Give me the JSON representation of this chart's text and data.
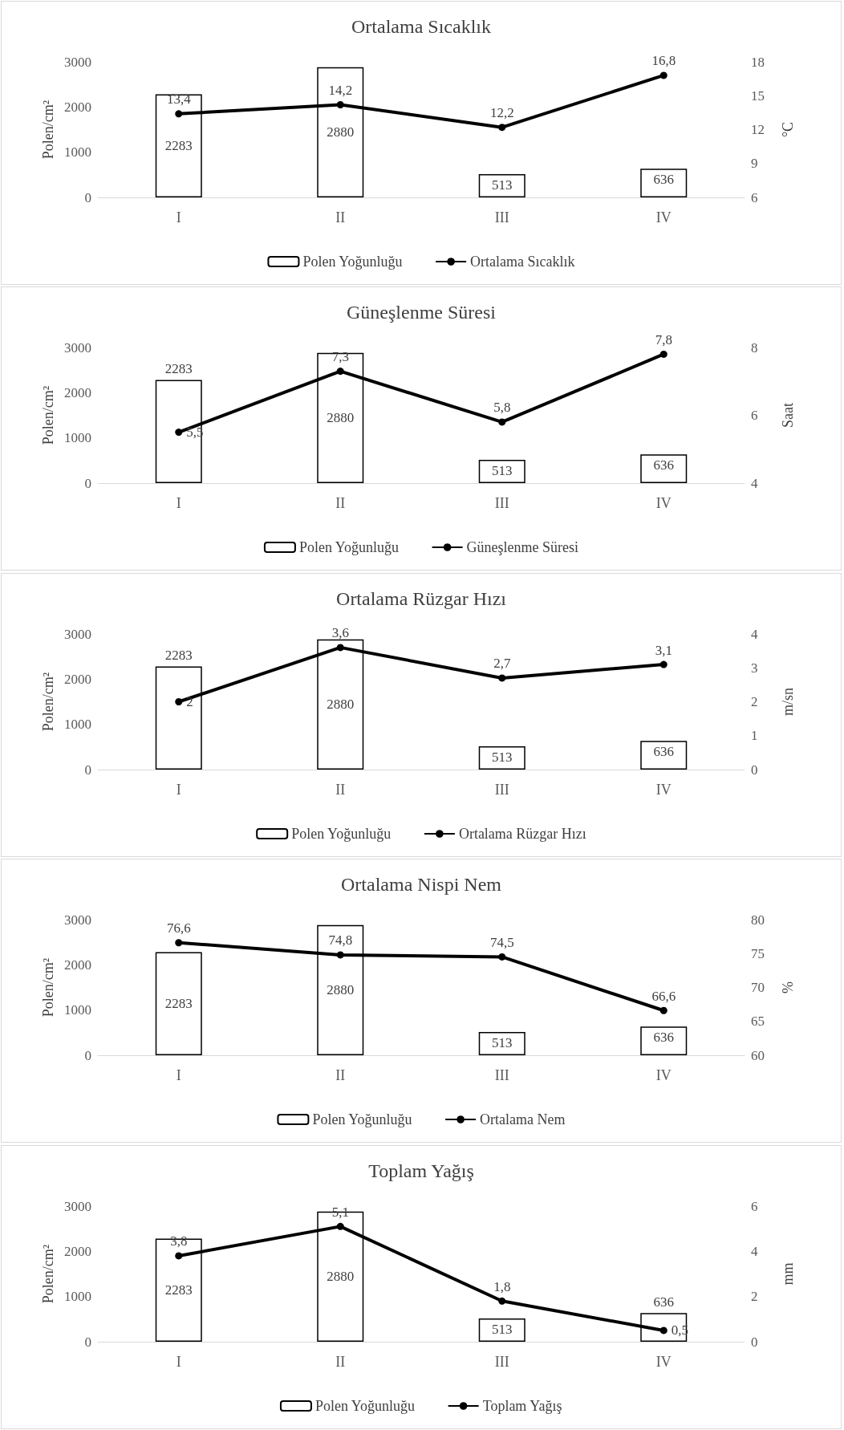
{
  "chart_data": [
    {
      "type": "bar",
      "title": "Ortalama Sıcaklık",
      "ylabel": "Polen/cm²",
      "y2label": "°C",
      "categories": [
        "I",
        "II",
        "III",
        "IV"
      ],
      "ylim": [
        0,
        3000
      ],
      "yticks": [
        0,
        1000,
        2000,
        3000
      ],
      "y2lim": [
        6,
        18
      ],
      "y2ticks": [
        6,
        9,
        12,
        15,
        18
      ],
      "legend": "bottom",
      "grid": false,
      "marker": "circle",
      "series": [
        {
          "name": "Polen Yoğunluğu",
          "color": "#ffffff",
          "values": [
            2283,
            2880,
            513,
            636
          ],
          "value_labels": [
            "2283",
            "2880",
            "513",
            "636"
          ]
        },
        {
          "name": "Ortalama Sıcaklık",
          "type": "line",
          "axis": "y2",
          "color": "#000000",
          "values": [
            13.4,
            14.2,
            12.2,
            16.8
          ],
          "value_labels": [
            "13,4",
            "14,2",
            "12,2",
            "16,8"
          ]
        }
      ]
    },
    {
      "type": "bar",
      "title": "Güneşlenme Süresi",
      "ylabel": "Polen/cm²",
      "y2label": "Saat",
      "categories": [
        "I",
        "II",
        "III",
        "IV"
      ],
      "ylim": [
        0,
        3000
      ],
      "yticks": [
        0,
        1000,
        2000,
        3000
      ],
      "y2lim": [
        4,
        8
      ],
      "y2ticks": [
        4,
        6,
        8
      ],
      "legend": "bottom",
      "grid": false,
      "marker": "circle",
      "series": [
        {
          "name": "Polen Yoğunluğu",
          "color": "#ffffff",
          "values": [
            2283,
            2880,
            513,
            636
          ],
          "value_labels": [
            "2283",
            "2880",
            "513",
            "636"
          ]
        },
        {
          "name": "Güneşlenme Süresi",
          "type": "line",
          "axis": "y2",
          "color": "#000000",
          "values": [
            5.5,
            7.3,
            5.8,
            7.8
          ],
          "value_labels": [
            "5,5",
            "7,3",
            "5,8",
            "7,8"
          ]
        }
      ]
    },
    {
      "type": "bar",
      "title": "Ortalama Rüzgar Hızı",
      "ylabel": "Polen/cm²",
      "y2label": "m/sn",
      "categories": [
        "I",
        "II",
        "III",
        "IV"
      ],
      "ylim": [
        0,
        3000
      ],
      "yticks": [
        0,
        1000,
        2000,
        3000
      ],
      "y2lim": [
        0,
        4
      ],
      "y2ticks": [
        0,
        1,
        2,
        3,
        4
      ],
      "legend": "bottom",
      "grid": false,
      "marker": "circle",
      "series": [
        {
          "name": "Polen Yoğunluğu",
          "color": "#ffffff",
          "values": [
            2283,
            2880,
            513,
            636
          ],
          "value_labels": [
            "2283",
            "2880",
            "513",
            "636"
          ]
        },
        {
          "name": "Ortalama Rüzgar Hızı",
          "type": "line",
          "axis": "y2",
          "color": "#000000",
          "values": [
            2,
            3.6,
            2.7,
            3.1
          ],
          "value_labels": [
            "2",
            "3,6",
            "2,7",
            "3,1"
          ]
        }
      ]
    },
    {
      "type": "bar",
      "title": "Ortalama Nispi Nem",
      "ylabel": "Polen/cm²",
      "y2label": "%",
      "categories": [
        "I",
        "II",
        "III",
        "IV"
      ],
      "ylim": [
        0,
        3000
      ],
      "yticks": [
        0,
        1000,
        2000,
        3000
      ],
      "y2lim": [
        60,
        80
      ],
      "y2ticks": [
        60,
        65,
        70,
        75,
        80
      ],
      "legend": "bottom",
      "grid": false,
      "marker": "circle",
      "series": [
        {
          "name": "Polen Yoğunluğu",
          "color": "#ffffff",
          "values": [
            2283,
            2880,
            513,
            636
          ],
          "value_labels": [
            "2283",
            "2880",
            "513",
            "636"
          ]
        },
        {
          "name": "Ortalama Nem",
          "type": "line",
          "axis": "y2",
          "color": "#000000",
          "values": [
            76.6,
            74.8,
            74.5,
            66.6
          ],
          "value_labels": [
            "76,6",
            "74,8",
            "74,5",
            "66,6"
          ]
        }
      ]
    },
    {
      "type": "bar",
      "title": "Toplam Yağış",
      "ylabel": "Polen/cm²",
      "y2label": "mm",
      "categories": [
        "I",
        "II",
        "III",
        "IV"
      ],
      "ylim": [
        0,
        3000
      ],
      "yticks": [
        0,
        1000,
        2000,
        3000
      ],
      "y2lim": [
        0,
        6
      ],
      "y2ticks": [
        0,
        2,
        4,
        6
      ],
      "legend": "bottom",
      "grid": false,
      "marker": "circle",
      "series": [
        {
          "name": "Polen Yoğunluğu",
          "color": "#ffffff",
          "values": [
            2283,
            2880,
            513,
            636
          ],
          "value_labels": [
            "2283",
            "2880",
            "513",
            "636"
          ]
        },
        {
          "name": "Toplam Yağış",
          "type": "line",
          "axis": "y2",
          "color": "#000000",
          "values": [
            3.8,
            5.1,
            1.8,
            0.5
          ],
          "value_labels": [
            "3,8",
            "5,1",
            "1,8",
            "0,5"
          ]
        }
      ]
    }
  ]
}
